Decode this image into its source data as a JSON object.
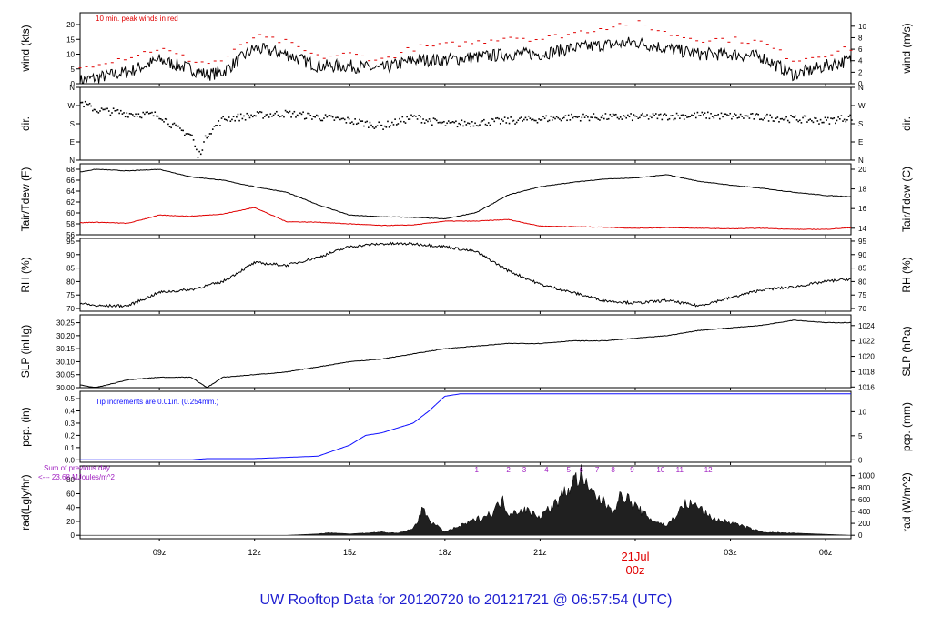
{
  "title": "UW Rooftop Data for 20120720  to  20121721 @ 06:57:54  (UTC)",
  "colors": {
    "black": "#000000",
    "red": "#e00000",
    "blue": "#1010ff",
    "purple": "#a020c0",
    "title": "#1f1fd0",
    "date": "#e00000"
  },
  "x_axis": {
    "ticks": [
      "09z",
      "12z",
      "15z",
      "18z",
      "21z",
      "00z",
      "03z",
      "06z"
    ],
    "date_label": "21Jul",
    "date_sub": "00z"
  },
  "chart_data": [
    {
      "id": "wind",
      "type": "line",
      "ylabel": "wind (kts)",
      "ylabel_right": "wind (m/s)",
      "ylim": [
        0,
        24
      ],
      "yticks": [
        0,
        5,
        10,
        15,
        20
      ],
      "yticks_right": [
        0,
        2,
        4,
        6,
        8,
        10
      ],
      "right_factor": 0.5144,
      "annotation": "10 min. peak winds in red",
      "x_hours": [
        6.5,
        7.0,
        8.0,
        9.0,
        10.0,
        10.5,
        11.0,
        12.0,
        13.0,
        14.0,
        15.0,
        16.0,
        17.0,
        18.0,
        19.0,
        20.0,
        21.0,
        22.0,
        23.0,
        24.0,
        25.0,
        26.0,
        27.0,
        28.0,
        29.0,
        30.0,
        30.8
      ],
      "series": [
        {
          "color": "#000000",
          "values": [
            1,
            2,
            4,
            8,
            5,
            3,
            4,
            12,
            10,
            6,
            6,
            5,
            8,
            8,
            9,
            10,
            10,
            12,
            13,
            14,
            12,
            10,
            10,
            9,
            3,
            6,
            8
          ]
        },
        {
          "color": "#e00000",
          "style": "dots",
          "values": [
            5,
            7,
            9,
            12,
            8,
            7,
            8,
            16,
            14,
            9,
            10,
            8,
            12,
            13,
            14,
            16,
            15,
            17,
            19,
            21,
            17,
            15,
            15,
            14,
            8,
            10,
            12
          ]
        }
      ]
    },
    {
      "id": "dir",
      "type": "scatter",
      "ylabel": "dir.",
      "ylabel_right": "dir.",
      "ylim": [
        0,
        4
      ],
      "ytick_values": [
        0,
        1,
        2,
        3,
        4
      ],
      "ytick_labels": [
        "N",
        "E",
        "S",
        "W",
        "N"
      ],
      "x_hours": [
        6.5,
        7.0,
        8.0,
        9.0,
        9.5,
        10.0,
        10.2,
        10.5,
        11.0,
        12.0,
        13.0,
        14.0,
        15.0,
        16.0,
        17.0,
        18.0,
        20.0,
        22.0,
        24.0,
        26.0,
        28.0,
        30.0,
        30.8
      ],
      "series": [
        {
          "color": "#000000",
          "values": [
            3.2,
            2.8,
            2.6,
            2.5,
            1.8,
            1.4,
            0.2,
            1.5,
            2.3,
            2.5,
            2.6,
            2.4,
            2.2,
            1.9,
            2.4,
            2.0,
            2.2,
            2.4,
            2.4,
            2.5,
            2.4,
            2.2,
            2.4
          ]
        }
      ]
    },
    {
      "id": "temp",
      "type": "line",
      "ylabel": "Tair/Tdew (F)",
      "ylabel_right": "Tair/Tdew (C)",
      "ylim": [
        56,
        69
      ],
      "yticks": [
        56,
        58,
        60,
        62,
        64,
        66,
        68
      ],
      "yticks_right": [
        14,
        16,
        18,
        20
      ],
      "right_transform": "F_to_C",
      "x_hours": [
        6.5,
        7.0,
        8.0,
        9.0,
        10.0,
        11.0,
        12.0,
        13.0,
        14.0,
        15.0,
        16.0,
        17.0,
        18.0,
        19.0,
        20.0,
        21.0,
        22.0,
        23.0,
        24.0,
        25.0,
        26.0,
        27.0,
        28.0,
        29.0,
        30.0,
        30.8
      ],
      "series": [
        {
          "color": "#000000",
          "values": [
            67.5,
            68.0,
            67.7,
            68.0,
            66.6,
            66.0,
            64.8,
            63.8,
            61.5,
            59.6,
            59.3,
            59.2,
            58.9,
            60.1,
            63.3,
            64.8,
            65.6,
            66.2,
            66.4,
            67.0,
            65.8,
            65.1,
            64.5,
            63.8,
            63.2,
            63.0
          ]
        },
        {
          "color": "#e00000",
          "values": [
            58.2,
            58.3,
            58.1,
            59.6,
            59.4,
            59.8,
            61.0,
            58.4,
            58.3,
            58.0,
            57.7,
            57.8,
            58.5,
            58.5,
            58.8,
            57.6,
            57.5,
            57.4,
            57.2,
            57.3,
            57.2,
            57.1,
            57.2,
            57.0,
            57.0,
            57.3
          ]
        }
      ]
    },
    {
      "id": "rh",
      "type": "line",
      "ylabel": "RH (%)",
      "ylabel_right": "RH (%)",
      "ylim": [
        69,
        96
      ],
      "yticks": [
        70,
        75,
        80,
        85,
        90,
        95
      ],
      "yticks_right": [
        70,
        75,
        80,
        85,
        90,
        95
      ],
      "right_factor": 1,
      "x_hours": [
        6.5,
        7.0,
        8.0,
        9.0,
        10.0,
        11.0,
        12.0,
        13.0,
        14.0,
        15.0,
        16.0,
        17.0,
        18.0,
        19.0,
        20.0,
        21.0,
        22.0,
        23.0,
        24.0,
        25.0,
        26.0,
        27.0,
        28.0,
        29.0,
        30.0,
        30.8
      ],
      "series": [
        {
          "color": "#000000",
          "values": [
            72,
            71,
            71,
            76,
            77,
            80,
            87,
            86,
            89,
            93,
            94,
            94,
            93,
            91,
            84,
            79,
            76,
            73,
            72,
            73,
            71,
            74,
            77,
            78,
            80,
            81
          ]
        }
      ]
    },
    {
      "id": "slp",
      "type": "line",
      "ylabel": "SLP (inHg)",
      "ylabel_right": "SLP (hPa)",
      "ylim": [
        30.0,
        30.28
      ],
      "yticks": [
        30.0,
        30.05,
        30.1,
        30.15,
        30.2,
        30.25
      ],
      "yticks_right": [
        1016,
        1018,
        1020,
        1022,
        1024
      ],
      "right_factor": 33.8639,
      "x_hours": [
        6.5,
        7.0,
        8.0,
        9.0,
        10.0,
        10.5,
        11.0,
        12.0,
        13.0,
        14.0,
        15.0,
        16.0,
        17.0,
        18.0,
        19.0,
        20.0,
        21.0,
        22.0,
        23.0,
        24.0,
        25.0,
        26.0,
        27.0,
        28.0,
        29.0,
        30.0,
        30.8
      ],
      "series": [
        {
          "color": "#000000",
          "values": [
            30.01,
            30.0,
            30.03,
            30.04,
            30.04,
            30.0,
            30.04,
            30.05,
            30.06,
            30.08,
            30.1,
            30.11,
            30.13,
            30.15,
            30.16,
            30.17,
            30.17,
            30.18,
            30.18,
            30.19,
            30.2,
            30.22,
            30.23,
            30.24,
            30.26,
            30.25,
            30.25
          ]
        }
      ]
    },
    {
      "id": "pcp",
      "type": "line",
      "ylabel": "pcp. (in)",
      "ylabel_right": "pcp. (mm)",
      "ylim": [
        -0.02,
        0.56
      ],
      "yticks": [
        0.0,
        0.1,
        0.2,
        0.3,
        0.4,
        0.5
      ],
      "yticks_right": [
        0,
        5,
        10
      ],
      "right_factor": 25.4,
      "annotation": "Tip increments are 0.01in. (0.254mm.)",
      "x_hours": [
        6.5,
        8.0,
        10.0,
        10.5,
        12.0,
        14.0,
        15.0,
        15.5,
        16.0,
        17.0,
        17.5,
        18.0,
        18.5,
        19.0,
        24.0,
        30.8
      ],
      "series": [
        {
          "color": "#1010ff",
          "values": [
            0.0,
            0.0,
            0.0,
            0.01,
            0.01,
            0.03,
            0.12,
            0.2,
            0.22,
            0.3,
            0.4,
            0.52,
            0.54,
            0.54,
            0.54,
            0.54
          ]
        }
      ]
    },
    {
      "id": "rad",
      "type": "area",
      "ylabel": "rad(Lgly/hr)",
      "ylabel_right": "rad (W/m^2)",
      "ylim": [
        -5,
        100
      ],
      "yticks": [
        0,
        20,
        40,
        60,
        80
      ],
      "yticks_right": [
        0,
        200,
        400,
        600,
        800,
        1000
      ],
      "right_factor": 11.63,
      "annotation_lines": [
        "Sum of previous day",
        "<--- 23.68 MJoules/m^2"
      ],
      "hour_marks": [
        "1",
        "2",
        "3",
        "4",
        "5",
        "6",
        "7",
        "8",
        "9",
        "10",
        "11",
        "12"
      ],
      "hour_marks_x": [
        19.0,
        20.0,
        20.5,
        21.2,
        21.9,
        22.3,
        22.8,
        23.3,
        23.9,
        24.8,
        25.4,
        26.3
      ],
      "x_hours": [
        6.5,
        13.0,
        14.0,
        14.3,
        15.0,
        16.0,
        16.5,
        17.0,
        17.3,
        17.6,
        18.0,
        19.0,
        19.5,
        19.8,
        20.0,
        20.5,
        21.0,
        21.5,
        22.0,
        22.3,
        22.5,
        22.8,
        23.3,
        23.6,
        24.0,
        24.5,
        25.0,
        25.6,
        26.0,
        26.3,
        26.5,
        27.0,
        28.0,
        30.8
      ],
      "series": [
        {
          "color": "#000000",
          "values": [
            0,
            0,
            2,
            4,
            2,
            5,
            3,
            10,
            40,
            20,
            5,
            25,
            35,
            55,
            35,
            40,
            30,
            50,
            80,
            95,
            70,
            60,
            40,
            65,
            45,
            25,
            15,
            50,
            45,
            30,
            25,
            20,
            5,
            0
          ]
        }
      ]
    }
  ]
}
